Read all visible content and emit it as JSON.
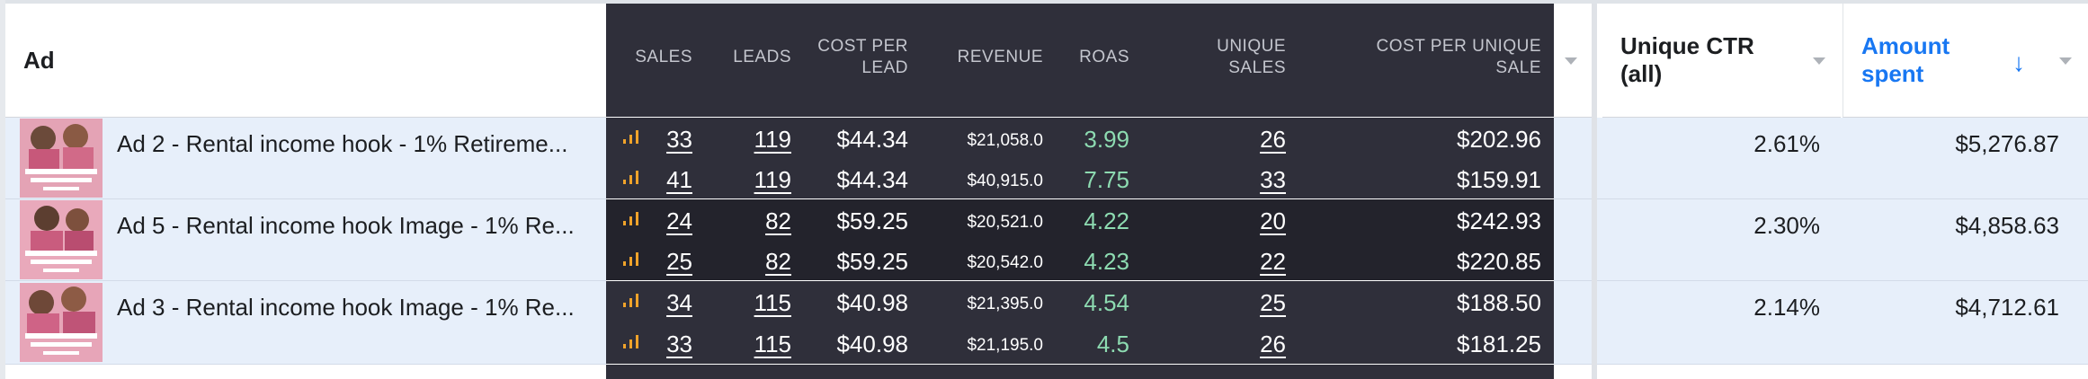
{
  "header": {
    "ad": "Ad",
    "sales": "SALES",
    "leads": "LEADS",
    "cost_per_lead_1": "COST PER",
    "cost_per_lead_2": "LEAD",
    "revenue": "REVENUE",
    "roas": "ROAS",
    "unique_sales_1": "UNIQUE",
    "unique_sales_2": "SALES",
    "cost_per_unique_sale_1": "COST PER UNIQUE",
    "cost_per_unique_sale_2": "SALE",
    "unique_ctr_1": "Unique CTR",
    "unique_ctr_2": "(all)",
    "amount_spent_1": "Amount",
    "amount_spent_2": "spent",
    "sort_arrow": "↓"
  },
  "colors": {
    "dark_panel": "#2f2f3a",
    "dark_panel_alt": "#23232c",
    "selected_row": "#e7effa",
    "link_blue": "#1877f2",
    "roas_green": "#8ddbb1",
    "signal_orange": "#f0a32a"
  },
  "ads": [
    {
      "name": "Ad 2 - Rental income hook - 1% Retireme...",
      "unique_ctr": "2.61%",
      "amount_spent": "$5,276.87",
      "metrics": [
        {
          "sales": "33",
          "leads": "119",
          "cost_per_lead": "$44.34",
          "revenue": "$21,058.0",
          "roas": "3.99",
          "unique_sales": "26",
          "cost_per_unique_sale": "$202.96"
        },
        {
          "sales": "41",
          "leads": "119",
          "cost_per_lead": "$44.34",
          "revenue": "$40,915.0",
          "roas": "7.75",
          "unique_sales": "33",
          "cost_per_unique_sale": "$159.91"
        }
      ]
    },
    {
      "name": "Ad 5 - Rental income hook Image - 1% Re...",
      "unique_ctr": "2.30%",
      "amount_spent": "$4,858.63",
      "metrics": [
        {
          "sales": "24",
          "leads": "82",
          "cost_per_lead": "$59.25",
          "revenue": "$20,521.0",
          "roas": "4.22",
          "unique_sales": "20",
          "cost_per_unique_sale": "$242.93"
        },
        {
          "sales": "25",
          "leads": "82",
          "cost_per_lead": "$59.25",
          "revenue": "$20,542.0",
          "roas": "4.23",
          "unique_sales": "22",
          "cost_per_unique_sale": "$220.85"
        }
      ]
    },
    {
      "name": "Ad 3 - Rental income hook Image - 1% Re...",
      "unique_ctr": "2.14%",
      "amount_spent": "$4,712.61",
      "metrics": [
        {
          "sales": "34",
          "leads": "115",
          "cost_per_lead": "$40.98",
          "revenue": "$21,395.0",
          "roas": "4.54",
          "unique_sales": "25",
          "cost_per_unique_sale": "$188.50"
        },
        {
          "sales": "33",
          "leads": "115",
          "cost_per_lead": "$40.98",
          "revenue": "$21,195.0",
          "roas": "4.5",
          "unique_sales": "26",
          "cost_per_unique_sale": "$181.25"
        }
      ]
    }
  ]
}
